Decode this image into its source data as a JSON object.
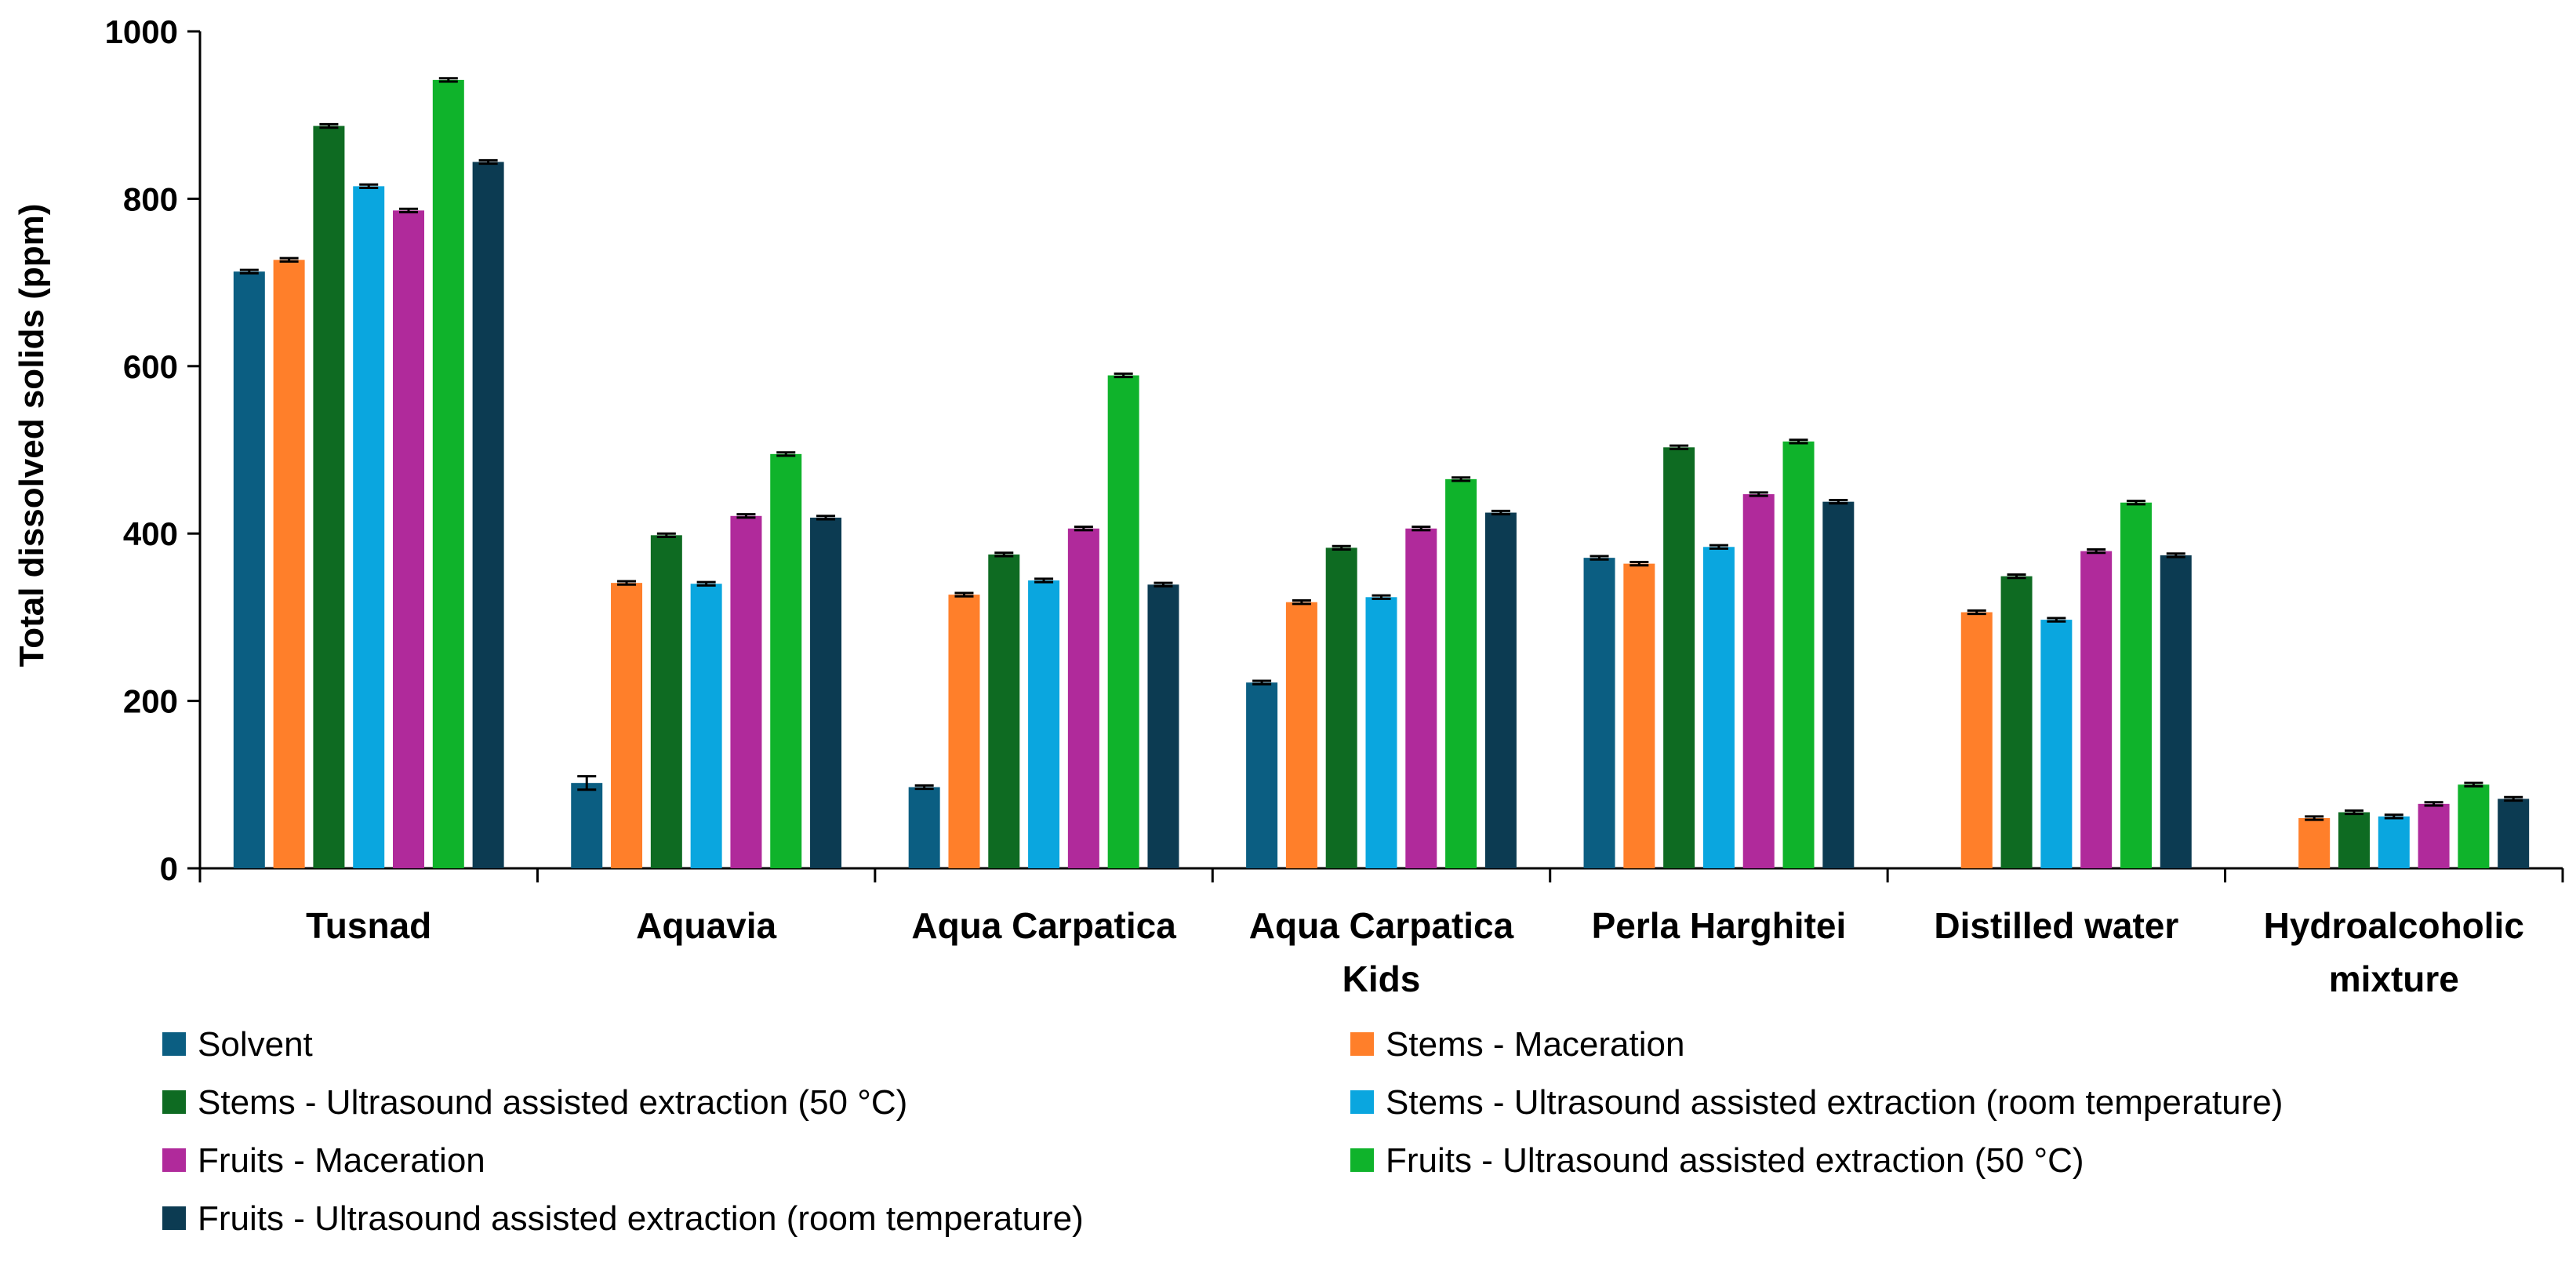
{
  "chart_data": {
    "type": "bar",
    "title": "",
    "xlabel": "",
    "ylabel": "Total dissolved solids (ppm)",
    "ylim": [
      0,
      1000
    ],
    "yticks": [
      "0",
      "200",
      "400",
      "600",
      "800",
      "1000"
    ],
    "grid": false,
    "legend_position": "bottom",
    "error_bars": true,
    "categories": [
      [
        "Tusnad"
      ],
      [
        "Aquavia"
      ],
      [
        "Aqua Carpatica"
      ],
      [
        "Aqua Carpatica",
        "Kids"
      ],
      [
        "Perla Harghitei"
      ],
      [
        "Distilled water"
      ],
      [
        "Hydroalcoholic",
        "mixture"
      ]
    ],
    "series": [
      {
        "name": "Solvent",
        "color": "#0b5e82",
        "values": [
          713,
          102,
          97,
          222,
          371,
          0,
          0
        ],
        "errors": [
          2,
          8,
          2,
          2,
          2,
          0,
          0
        ]
      },
      {
        "name": "Stems - Maceration",
        "color": "#ff7f2a",
        "values": [
          727,
          341,
          327,
          318,
          364,
          306,
          60
        ],
        "errors": [
          2,
          2,
          2,
          2,
          2,
          2,
          2
        ]
      },
      {
        "name": "Stems - Ultrasound assisted extraction (50 °C)",
        "color": "#0e6b22",
        "values": [
          887,
          398,
          375,
          383,
          503,
          349,
          67
        ],
        "errors": [
          2,
          2,
          2,
          2,
          2,
          2,
          2
        ]
      },
      {
        "name": "Stems - Ultrasound assisted extraction (room temperature)",
        "color": "#0aa6df",
        "values": [
          815,
          340,
          344,
          324,
          384,
          297,
          62
        ],
        "errors": [
          2,
          2,
          2,
          2,
          2,
          2,
          2
        ]
      },
      {
        "name": "Fruits - Maceration",
        "color": "#b02a9b",
        "values": [
          786,
          421,
          406,
          406,
          447,
          379,
          77
        ],
        "errors": [
          2,
          2,
          2,
          2,
          2,
          2,
          2
        ]
      },
      {
        "name": "Fruits - Ultrasound assisted extraction (50 °C)",
        "color": "#0fb32b",
        "values": [
          942,
          495,
          589,
          465,
          510,
          437,
          100
        ],
        "errors": [
          2,
          2,
          2,
          2,
          2,
          2,
          2
        ]
      },
      {
        "name": "Fruits - Ultrasound assisted extraction (room temperature)",
        "color": "#0c3b52",
        "values": [
          844,
          419,
          339,
          425,
          438,
          374,
          83
        ],
        "errors": [
          2,
          2,
          2,
          2,
          2,
          2,
          2
        ]
      }
    ]
  }
}
